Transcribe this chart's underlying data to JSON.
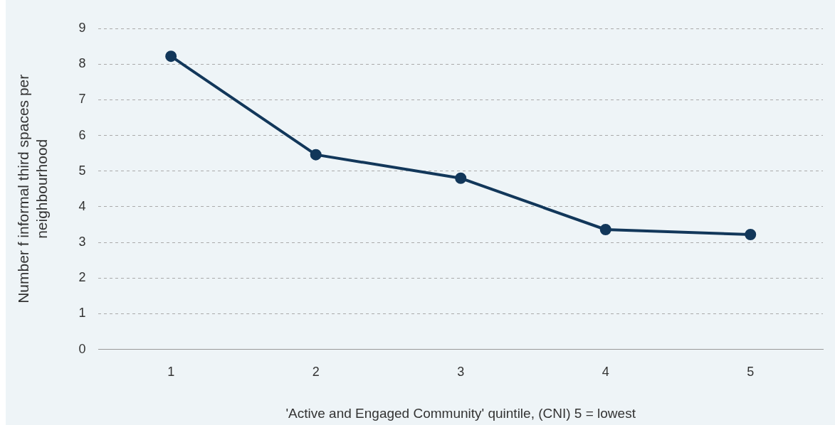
{
  "chart_data": {
    "type": "line",
    "xlabel": "'Active and Engaged Community' quintile, (CNI) 5 = lowest",
    "ylabel": "Number f informal third spaces per\nneighbourhood",
    "categories": [
      "1",
      "2",
      "3",
      "4",
      "5"
    ],
    "series": [
      {
        "color": "#12375a",
        "values": [
          8.22,
          5.46,
          4.8,
          3.36,
          3.22
        ]
      }
    ],
    "ylim": [
      0,
      9
    ],
    "yticks": [
      0,
      1,
      2,
      3,
      4,
      5,
      6,
      7,
      8,
      9
    ],
    "grid": "y",
    "legend": false,
    "marker": "circle",
    "line_style": "solid"
  }
}
